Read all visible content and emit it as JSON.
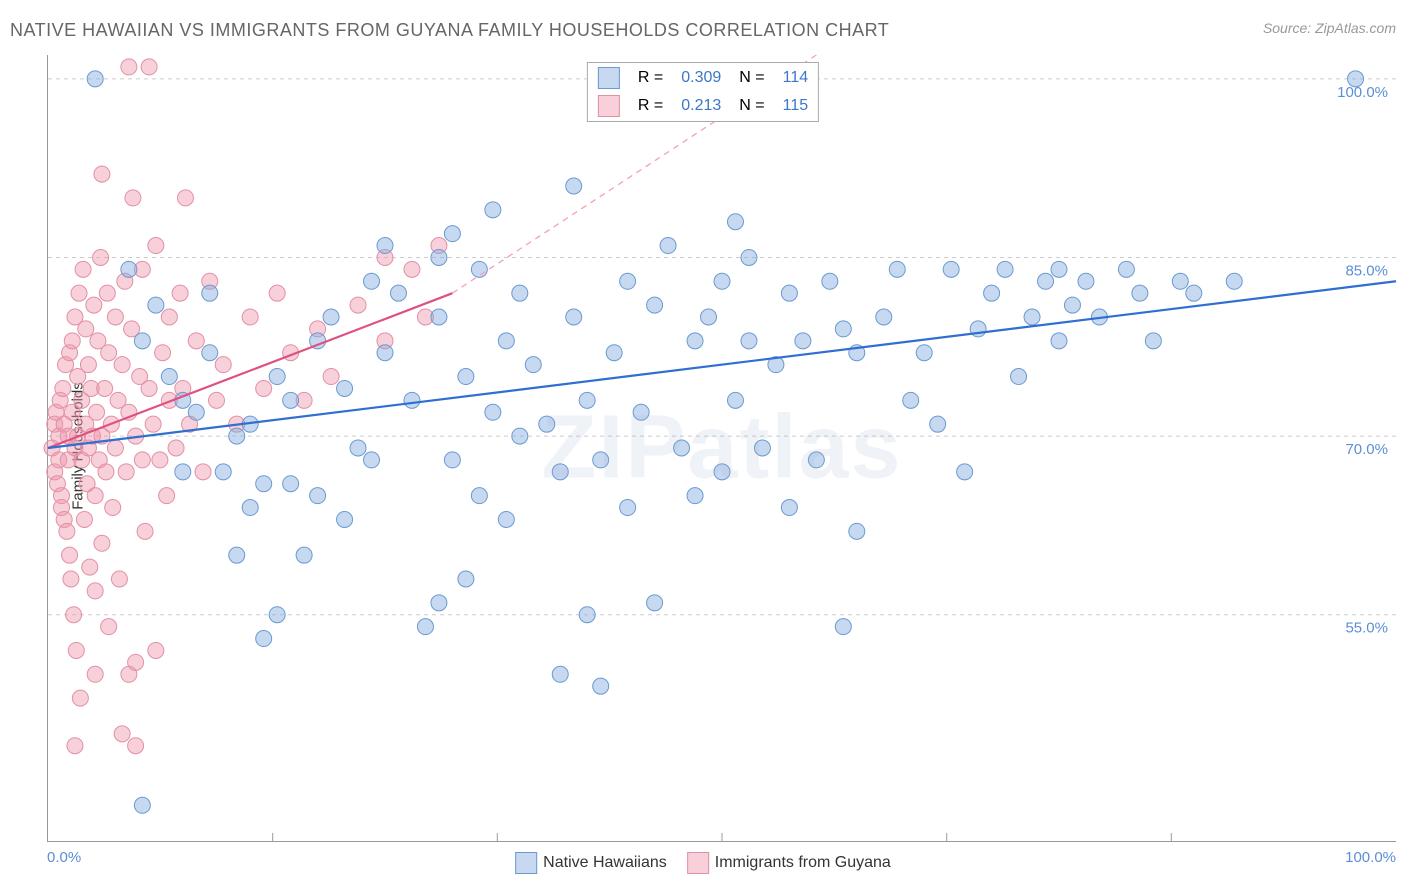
{
  "title": "NATIVE HAWAIIAN VS IMMIGRANTS FROM GUYANA FAMILY HOUSEHOLDS CORRELATION CHART",
  "source": "Source: ZipAtlas.com",
  "y_axis_label": "Family Households",
  "watermark": "ZIPatlas",
  "axes": {
    "x_min": 0,
    "x_max": 100,
    "y_min": 36,
    "y_max": 102,
    "x_tick_labels": [
      {
        "value": 0,
        "label": "0.0%"
      },
      {
        "value": 100,
        "label": "100.0%"
      }
    ],
    "y_tick_labels": [
      {
        "value": 55,
        "label": "55.0%"
      },
      {
        "value": 70,
        "label": "70.0%"
      },
      {
        "value": 85,
        "label": "85.0%"
      },
      {
        "value": 100,
        "label": "100.0%"
      }
    ],
    "y_grid_values": [
      55,
      70,
      85,
      100
    ],
    "x_minor_ticks": [
      16.67,
      33.33,
      50,
      66.67,
      83.33
    ],
    "gridline_color": "#cccccc",
    "gridline_dash": "4 4",
    "axis_color": "#999999",
    "tick_label_color": "#5b8fd6",
    "tick_label_fontsize": 15,
    "axis_label_fontsize": 15,
    "axis_label_color": "#333333"
  },
  "series": {
    "blue": {
      "name": "Native Hawaiians",
      "marker_color_fill": "rgba(130,170,225,0.45)",
      "marker_color_stroke": "#6a9ad0",
      "marker_radius": 8,
      "line_color": "#2f6fd0",
      "line_width": 2.2,
      "dash_color": "#2f6fd0",
      "dash_pattern": "6 5",
      "R": "0.309",
      "N": "114",
      "trend_start": {
        "x": 0,
        "y": 69
      },
      "trend_solid_end": {
        "x": 100,
        "y": 83
      },
      "trend_dash_end": {
        "x": 100,
        "y": 83
      },
      "points": [
        {
          "x": 97,
          "y": 100
        },
        {
          "x": 3.5,
          "y": 100
        },
        {
          "x": 6,
          "y": 84
        },
        {
          "x": 8,
          "y": 81
        },
        {
          "x": 7,
          "y": 78
        },
        {
          "x": 9,
          "y": 75
        },
        {
          "x": 10,
          "y": 73
        },
        {
          "x": 11,
          "y": 72
        },
        {
          "x": 12,
          "y": 77
        },
        {
          "x": 13,
          "y": 67
        },
        {
          "x": 14,
          "y": 60
        },
        {
          "x": 14,
          "y": 70
        },
        {
          "x": 15,
          "y": 64
        },
        {
          "x": 15,
          "y": 71
        },
        {
          "x": 16,
          "y": 53
        },
        {
          "x": 16,
          "y": 66
        },
        {
          "x": 17,
          "y": 75
        },
        {
          "x": 17,
          "y": 55
        },
        {
          "x": 18,
          "y": 66
        },
        {
          "x": 18,
          "y": 73
        },
        {
          "x": 19,
          "y": 60
        },
        {
          "x": 20,
          "y": 65
        },
        {
          "x": 20,
          "y": 78
        },
        {
          "x": 21,
          "y": 80
        },
        {
          "x": 22,
          "y": 63
        },
        {
          "x": 22,
          "y": 74
        },
        {
          "x": 23,
          "y": 69
        },
        {
          "x": 24,
          "y": 68
        },
        {
          "x": 24,
          "y": 83
        },
        {
          "x": 25,
          "y": 77
        },
        {
          "x": 25,
          "y": 86
        },
        {
          "x": 26,
          "y": 82
        },
        {
          "x": 27,
          "y": 73
        },
        {
          "x": 28,
          "y": 54
        },
        {
          "x": 29,
          "y": 56
        },
        {
          "x": 29,
          "y": 80
        },
        {
          "x": 30,
          "y": 68
        },
        {
          "x": 30,
          "y": 87
        },
        {
          "x": 31,
          "y": 75
        },
        {
          "x": 32,
          "y": 65
        },
        {
          "x": 32,
          "y": 84
        },
        {
          "x": 33,
          "y": 72
        },
        {
          "x": 33,
          "y": 89
        },
        {
          "x": 34,
          "y": 63
        },
        {
          "x": 34,
          "y": 78
        },
        {
          "x": 35,
          "y": 70
        },
        {
          "x": 35,
          "y": 82
        },
        {
          "x": 36,
          "y": 76
        },
        {
          "x": 37,
          "y": 71
        },
        {
          "x": 38,
          "y": 67
        },
        {
          "x": 38,
          "y": 50
        },
        {
          "x": 39,
          "y": 80
        },
        {
          "x": 39,
          "y": 91
        },
        {
          "x": 40,
          "y": 55
        },
        {
          "x": 40,
          "y": 73
        },
        {
          "x": 41,
          "y": 68
        },
        {
          "x": 41,
          "y": 49
        },
        {
          "x": 42,
          "y": 77
        },
        {
          "x": 43,
          "y": 64
        },
        {
          "x": 43,
          "y": 83
        },
        {
          "x": 44,
          "y": 72
        },
        {
          "x": 45,
          "y": 56
        },
        {
          "x": 45,
          "y": 81
        },
        {
          "x": 46,
          "y": 86
        },
        {
          "x": 47,
          "y": 69
        },
        {
          "x": 48,
          "y": 78
        },
        {
          "x": 49,
          "y": 80
        },
        {
          "x": 50,
          "y": 67
        },
        {
          "x": 50,
          "y": 83
        },
        {
          "x": 51,
          "y": 73
        },
        {
          "x": 52,
          "y": 78
        },
        {
          "x": 53,
          "y": 69
        },
        {
          "x": 54,
          "y": 76
        },
        {
          "x": 55,
          "y": 82
        },
        {
          "x": 55,
          "y": 64
        },
        {
          "x": 56,
          "y": 78
        },
        {
          "x": 57,
          "y": 68
        },
        {
          "x": 58,
          "y": 83
        },
        {
          "x": 59,
          "y": 79
        },
        {
          "x": 59,
          "y": 54
        },
        {
          "x": 60,
          "y": 77
        },
        {
          "x": 60,
          "y": 62
        },
        {
          "x": 62,
          "y": 80
        },
        {
          "x": 63,
          "y": 84
        },
        {
          "x": 64,
          "y": 73
        },
        {
          "x": 65,
          "y": 77
        },
        {
          "x": 66,
          "y": 71
        },
        {
          "x": 67,
          "y": 84
        },
        {
          "x": 68,
          "y": 67
        },
        {
          "x": 69,
          "y": 79
        },
        {
          "x": 70,
          "y": 82
        },
        {
          "x": 71,
          "y": 84
        },
        {
          "x": 72,
          "y": 75
        },
        {
          "x": 73,
          "y": 80
        },
        {
          "x": 74,
          "y": 83
        },
        {
          "x": 75,
          "y": 78
        },
        {
          "x": 75,
          "y": 84
        },
        {
          "x": 76,
          "y": 81
        },
        {
          "x": 77,
          "y": 83
        },
        {
          "x": 78,
          "y": 80
        },
        {
          "x": 80,
          "y": 84
        },
        {
          "x": 81,
          "y": 82
        },
        {
          "x": 82,
          "y": 78
        },
        {
          "x": 84,
          "y": 83
        },
        {
          "x": 85,
          "y": 82
        },
        {
          "x": 88,
          "y": 83
        },
        {
          "x": 7,
          "y": 39
        },
        {
          "x": 48,
          "y": 65
        },
        {
          "x": 51,
          "y": 88
        },
        {
          "x": 12,
          "y": 82
        },
        {
          "x": 10,
          "y": 67
        },
        {
          "x": 52,
          "y": 85
        },
        {
          "x": 29,
          "y": 85
        },
        {
          "x": 31,
          "y": 58
        }
      ]
    },
    "pink": {
      "name": "Immigrants from Guyana",
      "marker_color_fill": "rgba(240,150,170,0.45)",
      "marker_color_stroke": "#e290a5",
      "marker_radius": 8,
      "line_color": "#e05080",
      "line_width": 2.2,
      "dash_color": "#f5a0b5",
      "dash_pattern": "6 5",
      "R": "0.213",
      "N": "115",
      "trend_start": {
        "x": 0,
        "y": 69
      },
      "trend_solid_end": {
        "x": 30,
        "y": 82
      },
      "trend_dash_end": {
        "x": 57,
        "y": 102
      },
      "points": [
        {
          "x": 0.3,
          "y": 69
        },
        {
          "x": 0.5,
          "y": 71
        },
        {
          "x": 0.5,
          "y": 67
        },
        {
          "x": 0.6,
          "y": 72
        },
        {
          "x": 0.7,
          "y": 66
        },
        {
          "x": 0.8,
          "y": 70
        },
        {
          "x": 0.8,
          "y": 68
        },
        {
          "x": 0.9,
          "y": 73
        },
        {
          "x": 1.0,
          "y": 65
        },
        {
          "x": 1.0,
          "y": 64
        },
        {
          "x": 1.1,
          "y": 74
        },
        {
          "x": 1.2,
          "y": 63
        },
        {
          "x": 1.2,
          "y": 71
        },
        {
          "x": 1.3,
          "y": 76
        },
        {
          "x": 1.4,
          "y": 62
        },
        {
          "x": 1.5,
          "y": 70
        },
        {
          "x": 1.5,
          "y": 68
        },
        {
          "x": 1.6,
          "y": 60
        },
        {
          "x": 1.6,
          "y": 77
        },
        {
          "x": 1.7,
          "y": 58
        },
        {
          "x": 1.8,
          "y": 72
        },
        {
          "x": 1.8,
          "y": 78
        },
        {
          "x": 1.9,
          "y": 55
        },
        {
          "x": 2.0,
          "y": 69
        },
        {
          "x": 2.0,
          "y": 80
        },
        {
          "x": 2.1,
          "y": 52
        },
        {
          "x": 2.2,
          "y": 75
        },
        {
          "x": 2.2,
          "y": 70
        },
        {
          "x": 2.3,
          "y": 82
        },
        {
          "x": 2.4,
          "y": 48
        },
        {
          "x": 2.5,
          "y": 68
        },
        {
          "x": 2.5,
          "y": 73
        },
        {
          "x": 2.6,
          "y": 84
        },
        {
          "x": 2.7,
          "y": 63
        },
        {
          "x": 2.8,
          "y": 71
        },
        {
          "x": 2.8,
          "y": 79
        },
        {
          "x": 2.9,
          "y": 66
        },
        {
          "x": 3.0,
          "y": 76
        },
        {
          "x": 3.0,
          "y": 69
        },
        {
          "x": 3.1,
          "y": 59
        },
        {
          "x": 3.2,
          "y": 74
        },
        {
          "x": 3.3,
          "y": 70
        },
        {
          "x": 3.4,
          "y": 81
        },
        {
          "x": 3.5,
          "y": 57
        },
        {
          "x": 3.5,
          "y": 65
        },
        {
          "x": 3.6,
          "y": 72
        },
        {
          "x": 3.7,
          "y": 78
        },
        {
          "x": 3.8,
          "y": 68
        },
        {
          "x": 3.9,
          "y": 85
        },
        {
          "x": 4.0,
          "y": 61
        },
        {
          "x": 4.0,
          "y": 70
        },
        {
          "x": 4.2,
          "y": 74
        },
        {
          "x": 4.3,
          "y": 67
        },
        {
          "x": 4.4,
          "y": 82
        },
        {
          "x": 4.5,
          "y": 54
        },
        {
          "x": 4.5,
          "y": 77
        },
        {
          "x": 4.7,
          "y": 71
        },
        {
          "x": 4.8,
          "y": 64
        },
        {
          "x": 5.0,
          "y": 80
        },
        {
          "x": 5.0,
          "y": 69
        },
        {
          "x": 5.2,
          "y": 73
        },
        {
          "x": 5.3,
          "y": 58
        },
        {
          "x": 5.5,
          "y": 76
        },
        {
          "x": 5.5,
          "y": 45
        },
        {
          "x": 5.7,
          "y": 83
        },
        {
          "x": 5.8,
          "y": 67
        },
        {
          "x": 6.0,
          "y": 72
        },
        {
          "x": 6.0,
          "y": 50
        },
        {
          "x": 6.2,
          "y": 79
        },
        {
          "x": 6.3,
          "y": 90
        },
        {
          "x": 6.5,
          "y": 70
        },
        {
          "x": 6.5,
          "y": 44
        },
        {
          "x": 6.8,
          "y": 75
        },
        {
          "x": 7.0,
          "y": 68
        },
        {
          "x": 7.0,
          "y": 84
        },
        {
          "x": 7.2,
          "y": 62
        },
        {
          "x": 7.5,
          "y": 74
        },
        {
          "x": 7.5,
          "y": 101
        },
        {
          "x": 7.8,
          "y": 71
        },
        {
          "x": 8.0,
          "y": 86
        },
        {
          "x": 8.0,
          "y": 52
        },
        {
          "x": 8.3,
          "y": 68
        },
        {
          "x": 8.5,
          "y": 77
        },
        {
          "x": 8.8,
          "y": 65
        },
        {
          "x": 9.0,
          "y": 80
        },
        {
          "x": 9.0,
          "y": 73
        },
        {
          "x": 9.5,
          "y": 69
        },
        {
          "x": 9.8,
          "y": 82
        },
        {
          "x": 10.0,
          "y": 74
        },
        {
          "x": 10.2,
          "y": 90
        },
        {
          "x": 10.5,
          "y": 71
        },
        {
          "x": 11.0,
          "y": 78
        },
        {
          "x": 11.5,
          "y": 67
        },
        {
          "x": 12.0,
          "y": 83
        },
        {
          "x": 12.5,
          "y": 73
        },
        {
          "x": 13.0,
          "y": 76
        },
        {
          "x": 14.0,
          "y": 71
        },
        {
          "x": 15.0,
          "y": 80
        },
        {
          "x": 16.0,
          "y": 74
        },
        {
          "x": 17.0,
          "y": 82
        },
        {
          "x": 18.0,
          "y": 77
        },
        {
          "x": 19.0,
          "y": 73
        },
        {
          "x": 20.0,
          "y": 79
        },
        {
          "x": 21.0,
          "y": 75
        },
        {
          "x": 23.0,
          "y": 81
        },
        {
          "x": 25.0,
          "y": 78
        },
        {
          "x": 25.0,
          "y": 85
        },
        {
          "x": 27.0,
          "y": 84
        },
        {
          "x": 28.0,
          "y": 80
        },
        {
          "x": 29.0,
          "y": 86
        },
        {
          "x": 6.0,
          "y": 101
        },
        {
          "x": 4.0,
          "y": 92
        },
        {
          "x": 2.0,
          "y": 44
        },
        {
          "x": 3.5,
          "y": 50
        },
        {
          "x": 6.5,
          "y": 51
        }
      ]
    }
  },
  "stats_legend": {
    "background": "#ffffff",
    "border_color": "#aaaaaa",
    "fontsize": 16,
    "label_R": "R =",
    "label_N": "N =",
    "value_color": "#3a78c8"
  },
  "bottom_legend": {
    "fontsize": 16,
    "text_color": "#333333"
  },
  "colors": {
    "title_color": "#666666",
    "source_color": "#999999",
    "background": "#ffffff"
  }
}
